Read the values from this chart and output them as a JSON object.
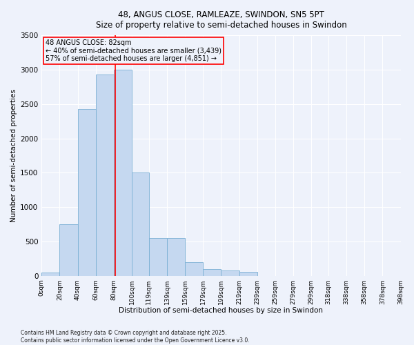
{
  "title_line1": "48, ANGUS CLOSE, RAMLEAZE, SWINDON, SN5 5PT",
  "title_line2": "Size of property relative to semi-detached houses in Swindon",
  "xlabel": "Distribution of semi-detached houses by size in Swindon",
  "ylabel": "Number of semi-detached properties",
  "property_size": 82,
  "annotation_title": "48 ANGUS CLOSE: 82sqm",
  "annotation_line2": "← 40% of semi-detached houses are smaller (3,439)",
  "annotation_line3": "57% of semi-detached houses are larger (4,851) →",
  "footer_line1": "Contains HM Land Registry data © Crown copyright and database right 2025.",
  "footer_line2": "Contains public sector information licensed under the Open Government Licence v3.0.",
  "bar_color": "#c5d8f0",
  "bar_edge_color": "#7aafd4",
  "vline_color": "red",
  "annotation_box_color": "red",
  "bins": [
    0,
    20,
    40,
    60,
    80,
    100,
    119,
    139,
    159,
    179,
    199,
    219,
    239,
    259,
    279,
    299,
    318,
    338,
    358,
    378,
    398
  ],
  "counts": [
    50,
    750,
    2430,
    2930,
    3000,
    1500,
    550,
    550,
    200,
    100,
    80,
    55,
    0,
    0,
    0,
    0,
    0,
    0,
    0,
    0
  ],
  "ylim": [
    0,
    3500
  ],
  "yticks": [
    0,
    500,
    1000,
    1500,
    2000,
    2500,
    3000,
    3500
  ],
  "background_color": "#eef2fb",
  "grid_color": "#ffffff",
  "bin_labels": [
    "0sqm",
    "20sqm",
    "40sqm",
    "60sqm",
    "80sqm",
    "100sqm",
    "119sqm",
    "139sqm",
    "159sqm",
    "179sqm",
    "199sqm",
    "219sqm",
    "239sqm",
    "259sqm",
    "279sqm",
    "299sqm",
    "318sqm",
    "338sqm",
    "358sqm",
    "378sqm",
    "398sqm"
  ]
}
